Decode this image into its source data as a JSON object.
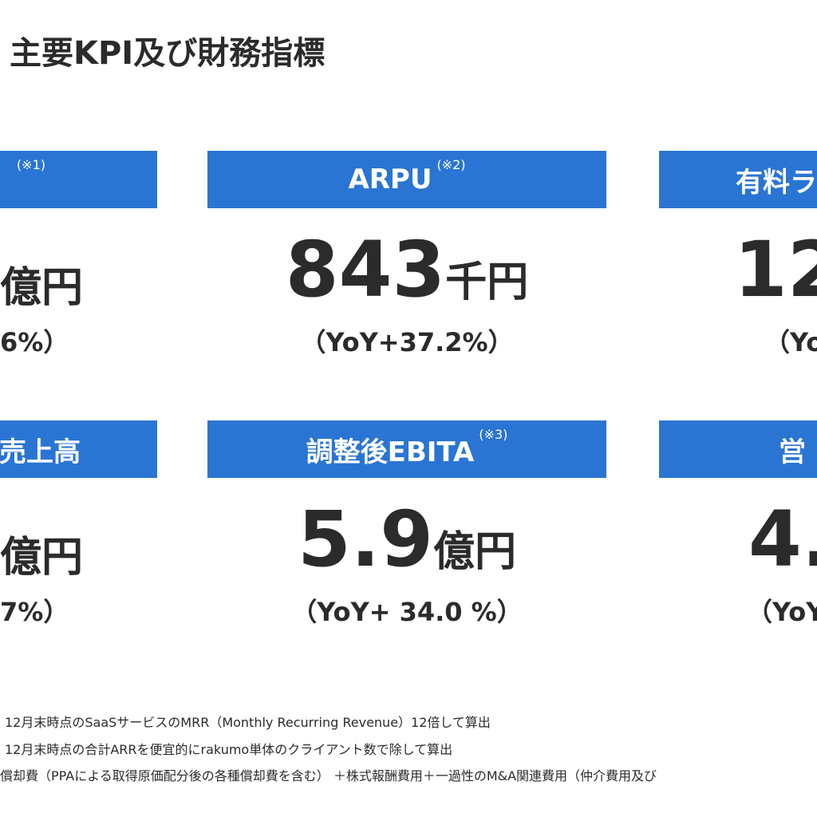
{
  "header": {
    "title": "主要KPI及び財務指標"
  },
  "cards": [
    {
      "label_note": "(※1)",
      "unit": "億円",
      "yoy": "6%）"
    },
    {
      "label": "ARPU",
      "label_note": "(※2)",
      "value": "843",
      "unit": "千円",
      "yoy": "（YoY+37.2%）"
    },
    {
      "label": "有料ラ",
      "value": "12",
      "yoy": "（Yo"
    },
    {
      "label": "売上高",
      "unit": "億円",
      "yoy": "7%）"
    },
    {
      "label": "調整後EBITA",
      "label_note": "(※3)",
      "value": "5.9",
      "unit": "億円",
      "yoy": "（YoY+ 34.0 %）"
    },
    {
      "label": "営",
      "value": "4.",
      "yoy": "（YoY"
    }
  ],
  "footnotes": [
    "12月末時点のSaaSサービスのMRR（Monthly Recurring Revenue）12倍して算出",
    "12月末時点の合計ARRを便宜的にrakumo単体のクライアント数で除して算出",
    "償却費（PPAによる取得原価配分後の各種償却費を含む） ＋株式報酬費用＋一過性のM&A関連費用（仲介費用及び"
  ]
}
